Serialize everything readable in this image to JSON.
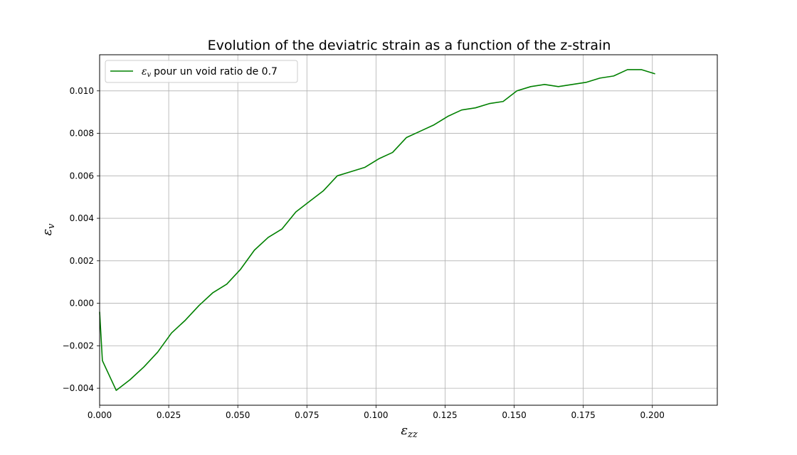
{
  "chart_data": {
    "type": "line",
    "title": "Evolution of the deviatric strain as a function of the z-strain",
    "xlabel": {
      "symbol": "ε",
      "subscript": "zz"
    },
    "ylabel": {
      "symbol": "ε",
      "subscript": "v"
    },
    "xlim": [
      0.0,
      0.2235
    ],
    "ylim": [
      -0.0048,
      0.0117
    ],
    "xticks": [
      0.0,
      0.025,
      0.05,
      0.075,
      0.1,
      0.125,
      0.15,
      0.175,
      0.2
    ],
    "xtick_labels": [
      "0.000",
      "0.025",
      "0.050",
      "0.075",
      "0.100",
      "0.125",
      "0.150",
      "0.175",
      "0.200"
    ],
    "yticks": [
      -0.004,
      -0.002,
      0.0,
      0.002,
      0.004,
      0.006,
      0.008,
      0.01
    ],
    "ytick_labels": [
      "−0.004",
      "−0.002",
      "0.000",
      "0.002",
      "0.004",
      "0.006",
      "0.008",
      "0.010"
    ],
    "grid": true,
    "legend_position": "top-left",
    "series": [
      {
        "name": "pour un void ratio de 0.7",
        "legend_symbol": "ε",
        "legend_subscript": "v",
        "color": "#008000",
        "x": [
          0.0,
          0.001,
          0.006,
          0.011,
          0.016,
          0.021,
          0.026,
          0.031,
          0.036,
          0.041,
          0.046,
          0.051,
          0.056,
          0.061,
          0.066,
          0.071,
          0.076,
          0.081,
          0.086,
          0.091,
          0.096,
          0.101,
          0.106,
          0.111,
          0.116,
          0.121,
          0.126,
          0.131,
          0.136,
          0.141,
          0.146,
          0.151,
          0.156,
          0.161,
          0.166,
          0.171,
          0.176,
          0.181,
          0.186,
          0.191,
          0.196,
          0.201
        ],
        "y": [
          -0.0004,
          -0.0027,
          -0.0041,
          -0.0036,
          -0.003,
          -0.0023,
          -0.0014,
          -0.0008,
          -0.0001,
          0.0005,
          0.0009,
          0.0016,
          0.0025,
          0.0031,
          0.0035,
          0.0043,
          0.0048,
          0.0053,
          0.006,
          0.0062,
          0.0064,
          0.0068,
          0.0071,
          0.0078,
          0.0081,
          0.0084,
          0.0088,
          0.0091,
          0.0092,
          0.0094,
          0.0095,
          0.01,
          0.0102,
          0.0103,
          0.0102,
          0.0103,
          0.0104,
          0.0106,
          0.0107,
          0.011,
          0.011,
          0.0108
        ]
      }
    ]
  }
}
